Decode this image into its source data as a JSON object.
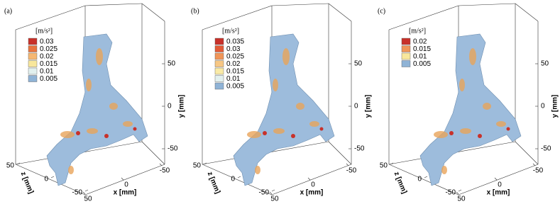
{
  "panels": [
    {
      "label": "(a)",
      "unit": "[m/s²]",
      "levels": [
        {
          "value": 0.03,
          "color": "#c8312a"
        },
        {
          "value": 0.025,
          "color": "#e8743f"
        },
        {
          "value": 0.02,
          "color": "#f6b873"
        },
        {
          "value": 0.015,
          "color": "#f8e79c"
        },
        {
          "value": 0.01,
          "color": "#e2f0ee"
        },
        {
          "value": 0.005,
          "color": "#8fb3d6"
        }
      ],
      "x_label": "x [mm]",
      "y_label": "y [mm]",
      "z_label": "z [mm]",
      "xticks": [
        50,
        0,
        -50
      ],
      "yticks": [
        50,
        0,
        -50
      ],
      "zticks": [
        50,
        0,
        -50
      ]
    },
    {
      "label": "(b)",
      "unit": "[m/s²]",
      "levels": [
        {
          "value": 0.035,
          "color": "#c8312a"
        },
        {
          "value": 0.03,
          "color": "#e35a36"
        },
        {
          "value": 0.025,
          "color": "#f09558"
        },
        {
          "value": 0.02,
          "color": "#f7c784"
        },
        {
          "value": 0.015,
          "color": "#f9eaa6"
        },
        {
          "value": 0.01,
          "color": "#e2f0ee"
        },
        {
          "value": 0.005,
          "color": "#8fb3d6"
        }
      ],
      "x_label": "x [mm]",
      "y_label": "y [mm]",
      "z_label": "z [mm]",
      "xticks": [
        50,
        0,
        -50
      ],
      "yticks": [
        50,
        0,
        -50
      ],
      "zticks": [
        50,
        0,
        -50
      ]
    },
    {
      "label": "(c)",
      "unit": "[m/s²]",
      "levels": [
        {
          "value": 0.02,
          "color": "#c8312a"
        },
        {
          "value": 0.015,
          "color": "#f09558"
        },
        {
          "value": 0.01,
          "color": "#f8e79c"
        },
        {
          "value": 0.005,
          "color": "#8fb3d6"
        }
      ],
      "x_label": "x [mm]",
      "y_label": "y [mm]",
      "z_label": "z [mm]",
      "xticks": [
        50,
        0,
        -50
      ],
      "yticks": [
        50,
        0,
        -50
      ],
      "zticks": [
        50,
        0,
        -50
      ]
    }
  ]
}
